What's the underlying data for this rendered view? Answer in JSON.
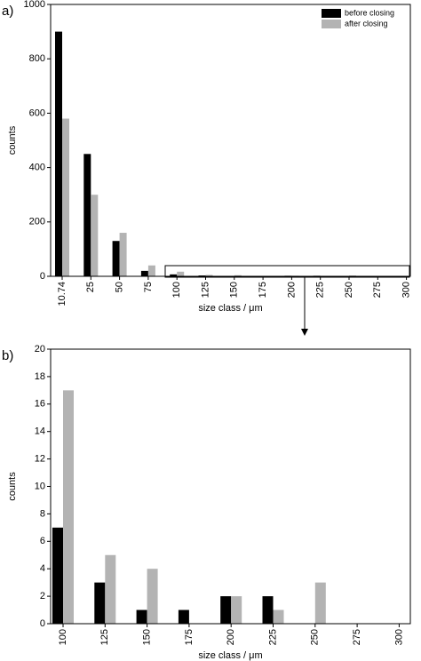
{
  "chart_data": [
    {
      "type": "bar",
      "panel_label": "a)",
      "categories": [
        "10.74",
        "25",
        "50",
        "75",
        "100",
        "125",
        "150",
        "175",
        "200",
        "225",
        "250",
        "275",
        "300"
      ],
      "series": [
        {
          "name": "before closing",
          "color": "#000000",
          "values": [
            900,
            450,
            130,
            20,
            7,
            3,
            1,
            1,
            2,
            2,
            0,
            0,
            0
          ]
        },
        {
          "name": "after closing",
          "color": "#b3b3b3",
          "values": [
            580,
            300,
            160,
            40,
            17,
            5,
            4,
            0,
            2,
            1,
            3,
            0,
            0
          ]
        }
      ],
      "ylim": [
        0,
        1000
      ],
      "yticks": [
        0,
        200,
        400,
        600,
        800,
        1000
      ],
      "x_label": "size class / μm",
      "y_label": "counts",
      "legend": "upper right"
    },
    {
      "type": "bar",
      "panel_label": "b)",
      "categories": [
        "100",
        "125",
        "150",
        "175",
        "200",
        "225",
        "250",
        "275",
        "300"
      ],
      "series": [
        {
          "name": "before closing",
          "color": "#000000",
          "values": [
            7,
            3,
            1,
            1,
            2,
            2,
            0,
            0,
            0
          ]
        },
        {
          "name": "after closing",
          "color": "#b3b3b3",
          "values": [
            17,
            5,
            4,
            0,
            2,
            1,
            3,
            0,
            0
          ]
        }
      ],
      "ylim": [
        0,
        20
      ],
      "yticks": [
        0,
        2,
        4,
        6,
        8,
        10,
        12,
        14,
        16,
        18,
        20
      ],
      "x_label": "size class / μm",
      "y_label": "counts"
    }
  ]
}
